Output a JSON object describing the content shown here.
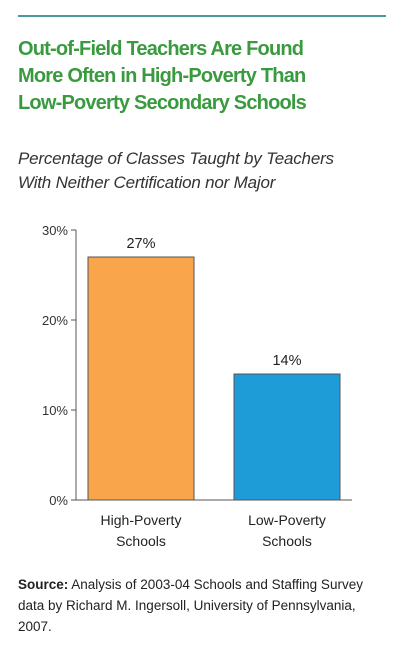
{
  "colors": {
    "title": "#3a9a3f",
    "rule": "#4a9aa0",
    "axis": "#555555"
  },
  "chart_data": {
    "type": "bar",
    "title": "Out-of-Field Teachers Are Found\nMore Often in High-Poverty Than\nLow-Poverty Secondary Schools",
    "subtitle": "Percentage of Classes Taught by Teachers\nWith Neither Certification nor Major",
    "categories": [
      "High-Poverty\nSchools",
      "Low-Poverty\nSchools"
    ],
    "values": [
      27,
      14
    ],
    "data_labels": [
      "27%",
      "14%"
    ],
    "colors": [
      "#f9a54b",
      "#1e9cd7"
    ],
    "y_ticks": [
      {
        "value": 0,
        "label": "0%"
      },
      {
        "value": 10,
        "label": "10%"
      },
      {
        "value": 20,
        "label": "20%"
      },
      {
        "value": 30,
        "label": "30%"
      }
    ],
    "ylim": [
      0,
      30
    ],
    "xlabel": "",
    "ylabel": "",
    "grid": false,
    "legend": "none"
  },
  "source": {
    "label": "Source:",
    "text": " Analysis of 2003-04 Schools and Staffing Survey data by Richard M. Ingersoll, University of Pennsylvania, 2007."
  }
}
